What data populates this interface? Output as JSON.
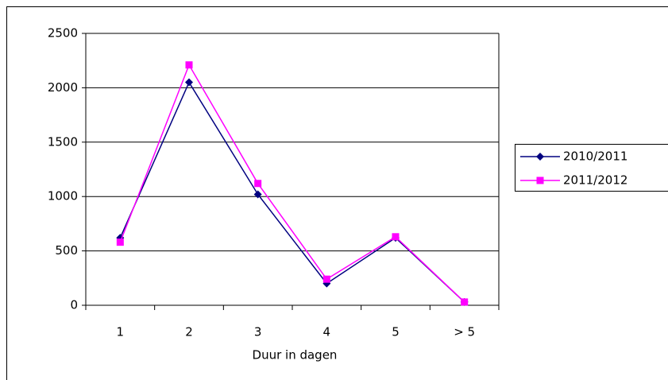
{
  "chart_data": {
    "type": "line",
    "x_label": "Duur in dagen",
    "categories": [
      "1",
      "2",
      "3",
      "4",
      "5",
      "> 5"
    ],
    "series": [
      {
        "name": "2010/2011",
        "color": "#000080",
        "marker": "diamond",
        "values": [
          620,
          2050,
          1020,
          200,
          620,
          30
        ]
      },
      {
        "name": "2011/2012",
        "color": "#ff00ff",
        "marker": "square",
        "values": [
          580,
          2210,
          1120,
          240,
          630,
          30
        ]
      }
    ],
    "ylim": [
      0,
      2500
    ],
    "yticks": [
      0,
      500,
      1000,
      1500,
      2000,
      2500
    ],
    "grid": true,
    "legend": "right"
  }
}
